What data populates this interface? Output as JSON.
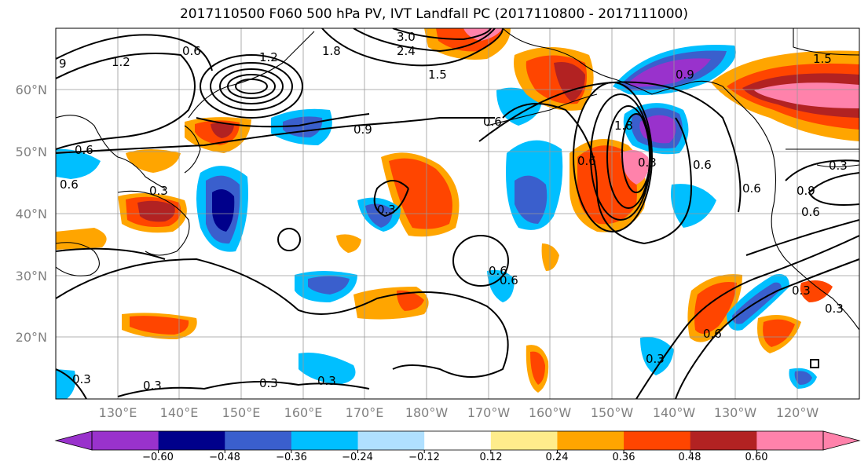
{
  "title": "2017110500 F060 500 hPa PV, IVT Landfall PC (2017110800 - 2017111000)",
  "map": {
    "lon_labels": [
      "130°E",
      "140°E",
      "150°E",
      "160°E",
      "170°E",
      "180°W",
      "170°W",
      "160°W",
      "150°W",
      "140°W",
      "130°W",
      "120°W"
    ],
    "lat_labels": [
      "60°N",
      "50°N",
      "40°N",
      "30°N",
      "20°N"
    ],
    "contour_labels": [
      "9",
      "1.2",
      "0.6",
      "1.2",
      "1.8",
      "3.0",
      "2.4",
      "1.5",
      "0.9",
      "0.6",
      "0.6",
      "0.3",
      "0.6",
      "0.3",
      "0.3",
      "0.3",
      "0.3",
      "0.6",
      "0.3",
      "0.6",
      "1.8",
      "0.3",
      "0.6",
      "0.9",
      "0.6",
      "0.9",
      "1.5",
      "0.3",
      "0.6",
      "0.3",
      "0.6",
      "0.3",
      "0.6",
      "0.3"
    ]
  },
  "colorbar": {
    "tick_labels": [
      "−0.60",
      "−0.48",
      "−0.36",
      "−0.24",
      "−0.12",
      "0.12",
      "0.24",
      "0.36",
      "0.48",
      "0.60"
    ],
    "colors": [
      "#9932cc",
      "#00008b",
      "#3a5fcd",
      "#00bfff",
      "#b0e0ff",
      "#ffffff",
      "#ffec8b",
      "#ffa500",
      "#ff4500",
      "#b22222",
      "#ff82ab"
    ]
  }
}
